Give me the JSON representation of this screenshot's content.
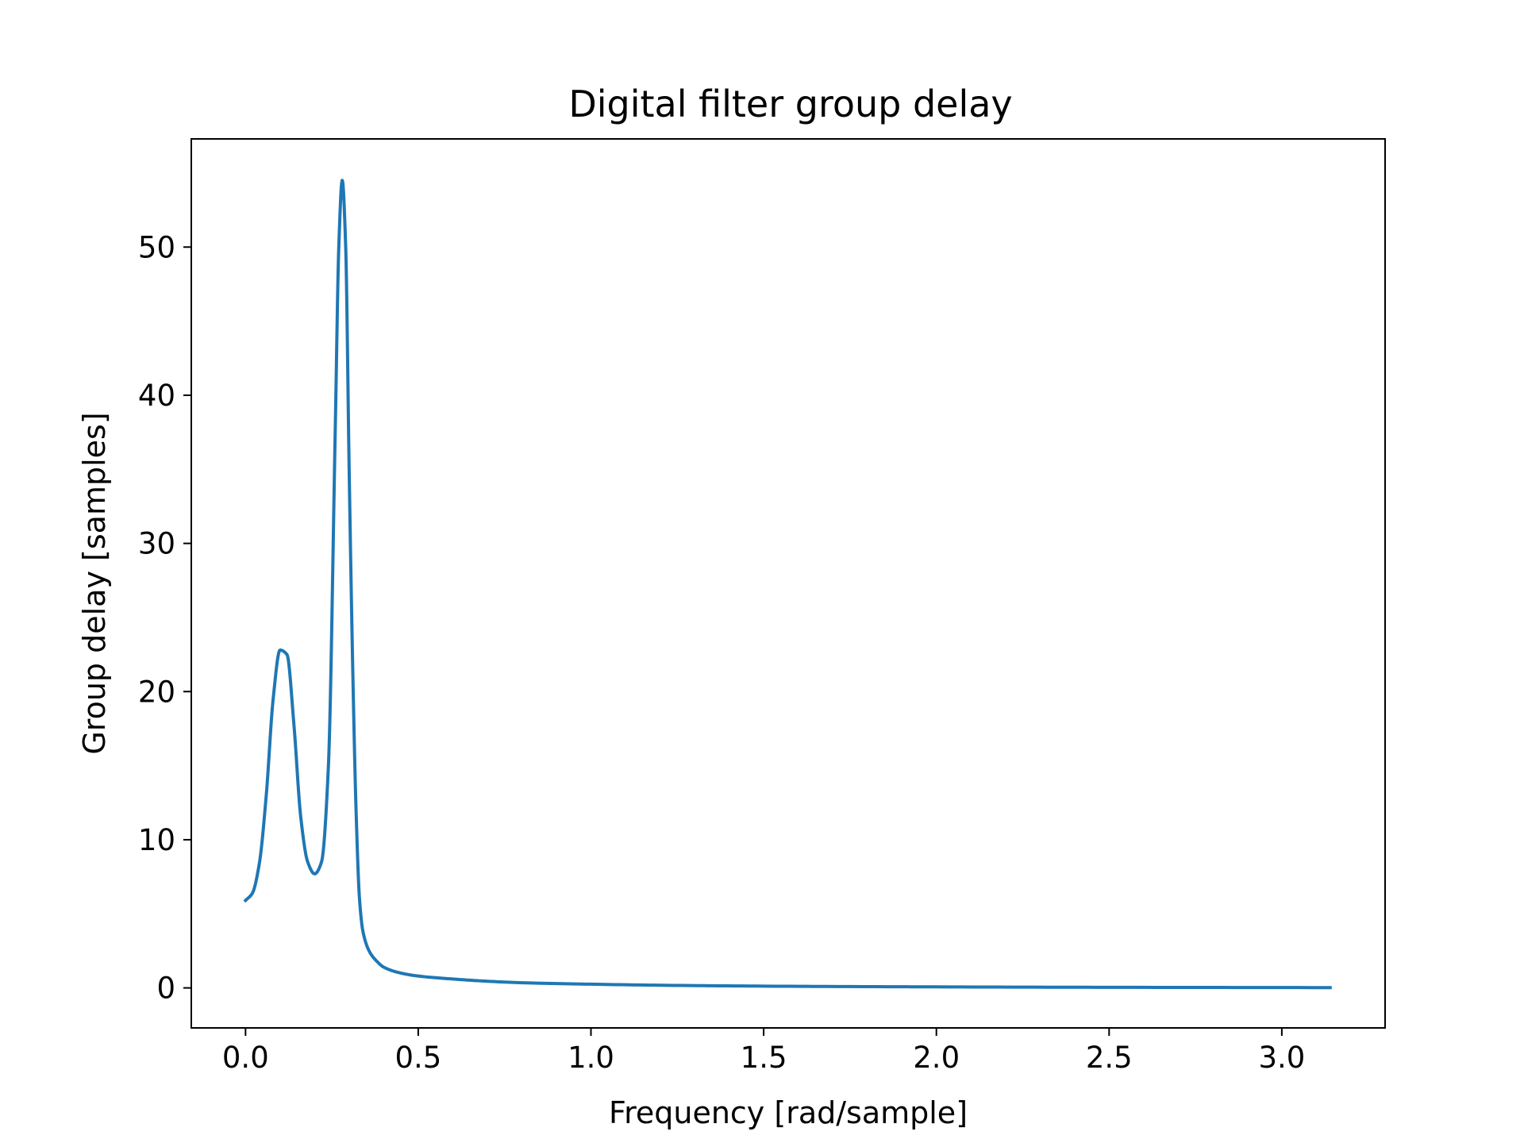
{
  "chart_data": {
    "type": "line",
    "title": "Digital filter group delay",
    "xlabel": "Frequency [rad/sample]",
    "ylabel": "Group delay [samples]",
    "xlim": [
      -0.157,
      3.299
    ],
    "ylim": [
      -2.7,
      57.3
    ],
    "x_ticks": [
      0.0,
      0.5,
      1.0,
      1.5,
      2.0,
      2.5,
      3.0
    ],
    "x_tick_labels": [
      "0.0",
      "0.5",
      "1.0",
      "1.5",
      "2.0",
      "2.5",
      "3.0"
    ],
    "y_ticks": [
      0,
      10,
      20,
      30,
      40,
      50
    ],
    "y_tick_labels": [
      "0",
      "10",
      "20",
      "30",
      "40",
      "50"
    ],
    "grid": false,
    "legend": "none",
    "colors": {
      "line": "#1f77b4",
      "axes": "#000000",
      "background": "#ffffff"
    },
    "series": [
      {
        "x": [
          0.0,
          0.02,
          0.04,
          0.06,
          0.08,
          0.1,
          0.12,
          0.14,
          0.16,
          0.18,
          0.2,
          0.22,
          0.24,
          0.26,
          0.27,
          0.28,
          0.29,
          0.3,
          0.31,
          0.32,
          0.33,
          0.34,
          0.36,
          0.38,
          0.4,
          0.45,
          0.5,
          0.6,
          0.7,
          0.8,
          1.0,
          1.2,
          1.5,
          2.0,
          2.5,
          3.14
        ],
        "y": [
          5.9,
          6.4,
          8.4,
          13.0,
          19.5,
          22.8,
          22.5,
          17.8,
          11.5,
          8.5,
          7.7,
          8.5,
          15.0,
          38.0,
          50.0,
          54.5,
          50.0,
          35.0,
          22.0,
          12.0,
          6.0,
          3.8,
          2.4,
          1.8,
          1.4,
          1.0,
          0.8,
          0.6,
          0.45,
          0.35,
          0.25,
          0.18,
          0.12,
          0.07,
          0.04,
          0.02
        ]
      }
    ]
  }
}
